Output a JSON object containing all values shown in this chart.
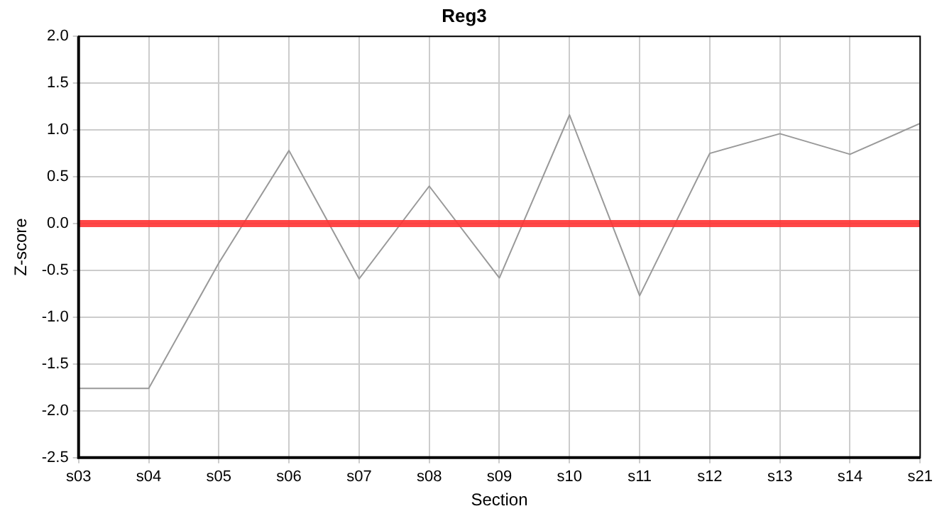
{
  "chart_data": {
    "type": "line",
    "title": "Reg3",
    "xlabel": "Section",
    "ylabel": "Z-score",
    "categories": [
      "s03",
      "s04",
      "s05",
      "s06",
      "s07",
      "s08",
      "s09",
      "s10",
      "s11",
      "s12",
      "s13",
      "s14",
      "s21"
    ],
    "series": [
      {
        "color": "#999999",
        "values": [
          -1.76,
          -1.76,
          -0.42,
          0.78,
          -0.59,
          0.4,
          -0.58,
          1.16,
          -0.77,
          0.75,
          0.96,
          0.74,
          1.07
        ]
      }
    ],
    "ylim": [
      -2.5,
      2.0
    ],
    "yticks": [
      {
        "value": -2.5,
        "label": "-2.5"
      },
      {
        "value": -2,
        "label": "-2.0"
      },
      {
        "value": -1.5,
        "label": "-1.5"
      },
      {
        "value": -1,
        "label": "-1.0"
      },
      {
        "value": -0.5,
        "label": "-0.5"
      },
      {
        "value": 0,
        "label": "0.0"
      },
      {
        "value": 0.5,
        "label": "0.5"
      },
      {
        "value": 1,
        "label": "1.0"
      },
      {
        "value": 1.5,
        "label": "1.5"
      },
      {
        "value": 2,
        "label": "2.0"
      }
    ],
    "ref_lines": [
      {
        "axis": "y",
        "value": 0,
        "color": "#ff3333"
      }
    ],
    "grid": true,
    "legend": false,
    "marker": "none",
    "line_style": "solid"
  }
}
